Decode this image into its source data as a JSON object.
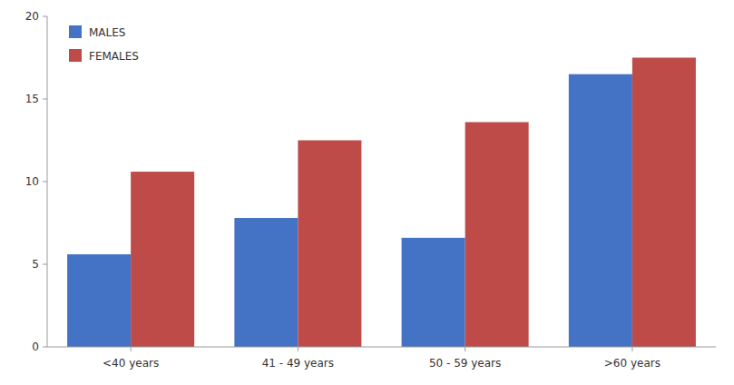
{
  "chart_data": {
    "type": "bar",
    "categories": [
      "<40 years",
      "41 - 49 years",
      "50 - 59 years",
      ">60 years"
    ],
    "series": [
      {
        "name": "MALES",
        "color": "#4472C4",
        "values": [
          5.6,
          7.8,
          6.6,
          16.5
        ]
      },
      {
        "name": "FEMALES",
        "color": "#BE4B48",
        "values": [
          10.6,
          12.5,
          13.6,
          17.5
        ]
      }
    ],
    "ylim": [
      0,
      20
    ],
    "yticks": [
      0,
      5,
      10,
      15,
      20
    ],
    "grid": false,
    "legend": "upper left"
  }
}
